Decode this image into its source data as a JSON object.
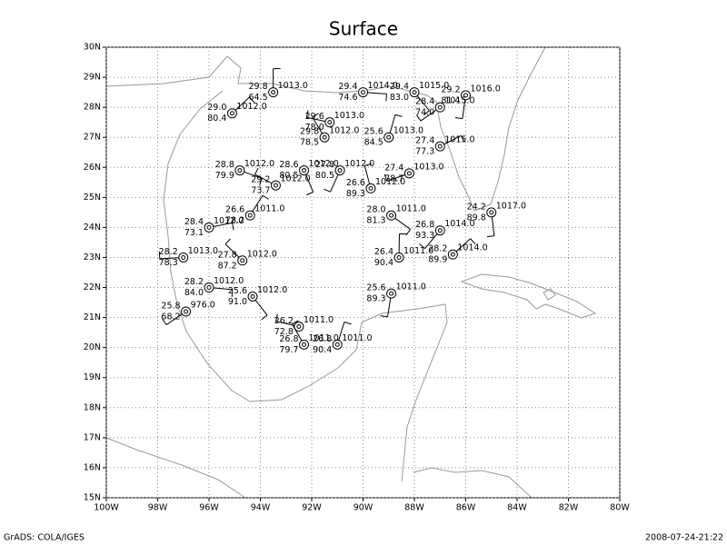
{
  "title": "Surface",
  "footer_left": "GrADS: COLA/IGES",
  "footer_right": "2008-07-24-21:22",
  "lon_range": [
    -100,
    -80
  ],
  "lat_range": [
    15,
    30
  ],
  "lon_ticks": [
    {
      "value": -100,
      "label": "100W"
    },
    {
      "value": -98,
      "label": "98W"
    },
    {
      "value": -96,
      "label": "96W"
    },
    {
      "value": -94,
      "label": "94W"
    },
    {
      "value": -92,
      "label": "92W"
    },
    {
      "value": -90,
      "label": "90W"
    },
    {
      "value": -88,
      "label": "88W"
    },
    {
      "value": -86,
      "label": "86W"
    },
    {
      "value": -84,
      "label": "84W"
    },
    {
      "value": -82,
      "label": "82W"
    },
    {
      "value": -80,
      "label": "80W"
    }
  ],
  "lat_ticks": [
    {
      "value": 15,
      "label": "15N"
    },
    {
      "value": 16,
      "label": "16N"
    },
    {
      "value": 17,
      "label": "17N"
    },
    {
      "value": 18,
      "label": "18N"
    },
    {
      "value": 19,
      "label": "19N"
    },
    {
      "value": 20,
      "label": "20N"
    },
    {
      "value": 21,
      "label": "21N"
    },
    {
      "value": 22,
      "label": "22N"
    },
    {
      "value": 23,
      "label": "23N"
    },
    {
      "value": 24,
      "label": "24N"
    },
    {
      "value": 25,
      "label": "25N"
    },
    {
      "value": 26,
      "label": "26N"
    },
    {
      "value": 27,
      "label": "27N"
    },
    {
      "value": 28,
      "label": "28N"
    },
    {
      "value": 29,
      "label": "29N"
    },
    {
      "value": 30,
      "label": "30N"
    }
  ],
  "stations": [
    {
      "lon": -93.5,
      "lat": 28.5,
      "temp": "29.8",
      "dew": "64.5",
      "pres": "1013.0"
    },
    {
      "lon": -95.1,
      "lat": 27.8,
      "temp": "29.0",
      "dew": "80.4",
      "pres": "1012.0"
    },
    {
      "lon": -90.0,
      "lat": 28.5,
      "temp": "29.4",
      "dew": "74.6",
      "pres": "1014.0"
    },
    {
      "lon": -88.0,
      "lat": 28.5,
      "temp": "29.4",
      "dew": "83.0",
      "pres": "1015.0"
    },
    {
      "lon": -86.0,
      "lat": 28.4,
      "temp": "29.2",
      "dew": "81.4",
      "pres": "1016.0"
    },
    {
      "lon": -87.0,
      "lat": 28.0,
      "temp": "28.4",
      "dew": "74.0",
      "pres": "1015.0"
    },
    {
      "lon": -91.3,
      "lat": 27.5,
      "temp": "29.6",
      "dew": "78.0",
      "pres": "1013.0"
    },
    {
      "lon": -91.5,
      "lat": 27.0,
      "temp": "29.8",
      "dew": "78.5",
      "pres": "1012.0"
    },
    {
      "lon": -89.0,
      "lat": 27.0,
      "temp": "25.6",
      "dew": "84.5",
      "pres": "1013.0"
    },
    {
      "lon": -87.0,
      "lat": 26.7,
      "temp": "27.4",
      "dew": "77.3",
      "pres": "1015.0"
    },
    {
      "lon": -94.8,
      "lat": 25.9,
      "temp": "28.8",
      "dew": "79.9",
      "pres": "1012.0"
    },
    {
      "lon": -92.3,
      "lat": 25.9,
      "temp": "28.6",
      "dew": "80.5",
      "pres": "1012.0"
    },
    {
      "lon": -90.9,
      "lat": 25.9,
      "temp": "27.8",
      "dew": "80.5",
      "pres": "1012.0"
    },
    {
      "lon": -88.2,
      "lat": 25.8,
      "temp": "27.4",
      "dew": "78.7",
      "pres": "1013.0"
    },
    {
      "lon": -93.4,
      "lat": 25.4,
      "temp": "29.2",
      "dew": "73.7",
      "pres": "1012.0"
    },
    {
      "lon": -89.7,
      "lat": 25.3,
      "temp": "26.6",
      "dew": "89.3",
      "pres": "1012.0"
    },
    {
      "lon": -94.4,
      "lat": 24.4,
      "temp": "26.6",
      "dew": "78.2",
      "pres": "1011.0"
    },
    {
      "lon": -96.0,
      "lat": 24.0,
      "temp": "28.4",
      "dew": "73.1",
      "pres": "1012.0"
    },
    {
      "lon": -88.9,
      "lat": 24.4,
      "temp": "28.0",
      "dew": "81.3",
      "pres": "1011.0"
    },
    {
      "lon": -85.0,
      "lat": 24.5,
      "temp": "24.2",
      "dew": "89.8",
      "pres": "1017.0"
    },
    {
      "lon": -87.0,
      "lat": 23.9,
      "temp": "26.8",
      "dew": "93.3",
      "pres": "1014.0"
    },
    {
      "lon": -97.0,
      "lat": 23.0,
      "temp": "28.2",
      "dew": "78.3",
      "pres": "1013.0"
    },
    {
      "lon": -94.7,
      "lat": 22.9,
      "temp": "27.8",
      "dew": "87.2",
      "pres": "1012.0"
    },
    {
      "lon": -88.6,
      "lat": 23.0,
      "temp": "26.4",
      "dew": "90.4",
      "pres": "1011.0"
    },
    {
      "lon": -86.5,
      "lat": 23.1,
      "temp": "28.2",
      "dew": "89.9",
      "pres": "1014.0"
    },
    {
      "lon": -96.0,
      "lat": 22.0,
      "temp": "28.2",
      "dew": "84.0",
      "pres": "1012.0"
    },
    {
      "lon": -94.3,
      "lat": 21.7,
      "temp": "25.6",
      "dew": "91.0",
      "pres": "1012.0"
    },
    {
      "lon": -88.9,
      "lat": 21.8,
      "temp": "25.6",
      "dew": "89.3",
      "pres": "1011.0"
    },
    {
      "lon": -96.9,
      "lat": 21.2,
      "temp": "25.8",
      "dew": "68.2",
      "pres": "976.0"
    },
    {
      "lon": -92.5,
      "lat": 20.7,
      "temp": "26.2",
      "dew": "72.8",
      "pres": "1011.0"
    },
    {
      "lon": -92.3,
      "lat": 20.1,
      "temp": "26.8",
      "dew": "79.7",
      "pres": "1011.0"
    },
    {
      "lon": -91.0,
      "lat": 20.1,
      "temp": "26.8",
      "dew": "90.4",
      "pres": "1011.0"
    }
  ]
}
